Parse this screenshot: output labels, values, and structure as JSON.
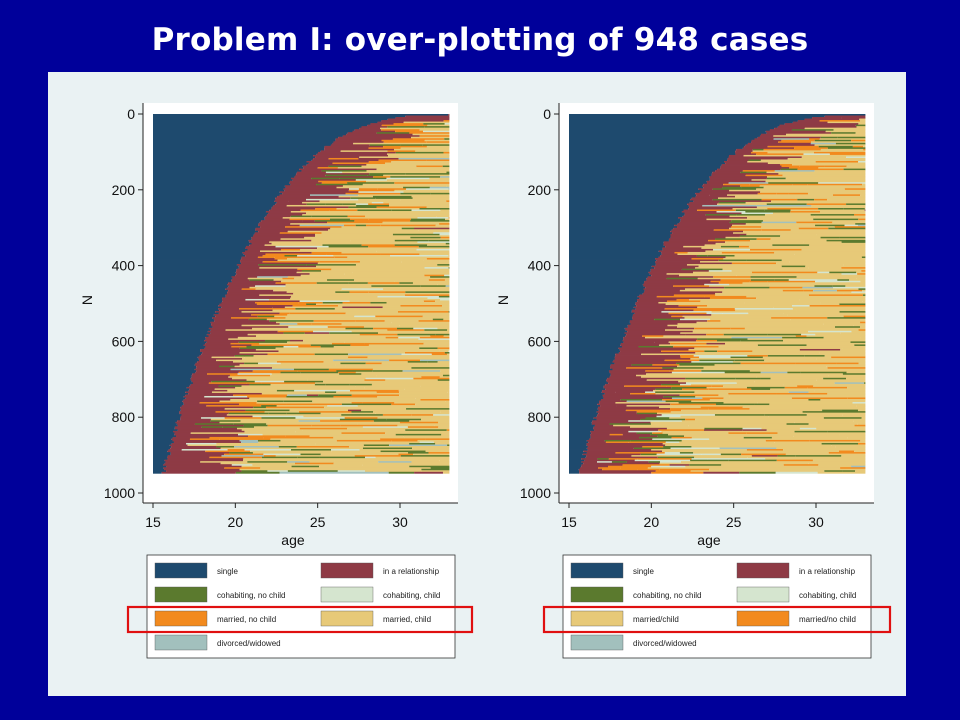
{
  "title": "Problem I: over-plotting of 948 cases",
  "chart_data": [
    {
      "type": "heatmap",
      "subtype": "sequence index plot",
      "cases": 948,
      "xlabel": "age",
      "ylabel": "N",
      "xlim": [
        15,
        33
      ],
      "ylim": [
        0,
        1000
      ],
      "y_reversed": true,
      "xticks": [
        "15",
        "20",
        "25",
        "30"
      ],
      "yticks": [
        "0",
        "200",
        "400",
        "600",
        "800",
        "1000"
      ],
      "states": [
        {
          "name": "single",
          "color": "#1e4a6e"
        },
        {
          "name": "in a relationship",
          "color": "#8e3a45"
        },
        {
          "name": "cohabiting, no child",
          "color": "#5b7a2e"
        },
        {
          "name": "cohabiting, child",
          "color": "#d5e5cf"
        },
        {
          "name": "married, no child",
          "color": "#f28a1e"
        },
        {
          "name": "married, child",
          "color": "#e7c978"
        },
        {
          "name": "divorced/widowed",
          "color": "#a2c0bd"
        }
      ],
      "legend": {
        "placement": "bottom",
        "entries": [
          "single",
          "in a relationship",
          "cohabiting, no child",
          "cohabiting, child",
          "married, no child",
          "married, child",
          "divorced/widowed"
        ]
      },
      "highlighted_legend_row": [
        "married, no child",
        "married, child"
      ]
    },
    {
      "type": "heatmap",
      "subtype": "sequence index plot",
      "cases": 948,
      "xlabel": "age",
      "ylabel": "N",
      "xlim": [
        15,
        33
      ],
      "ylim": [
        0,
        1000
      ],
      "y_reversed": true,
      "xticks": [
        "15",
        "20",
        "25",
        "30"
      ],
      "yticks": [
        "0",
        "200",
        "400",
        "600",
        "800",
        "1000"
      ],
      "states": [
        {
          "name": "single",
          "color": "#1e4a6e"
        },
        {
          "name": "in a relationship",
          "color": "#8e3a45"
        },
        {
          "name": "cohabiting, no child",
          "color": "#5b7a2e"
        },
        {
          "name": "cohabiting, child",
          "color": "#d5e5cf"
        },
        {
          "name": "married/child",
          "color": "#e7c978"
        },
        {
          "name": "married/no child",
          "color": "#f28a1e"
        },
        {
          "name": "divorced/widowed",
          "color": "#a2c0bd"
        }
      ],
      "legend": {
        "placement": "bottom",
        "entries": [
          "single",
          "in a relationship",
          "cohabiting, no child",
          "cohabiting, child",
          "married/child",
          "married/no child",
          "divorced/widowed"
        ]
      },
      "highlighted_legend_row": [
        "married/child",
        "married/no child"
      ]
    }
  ]
}
